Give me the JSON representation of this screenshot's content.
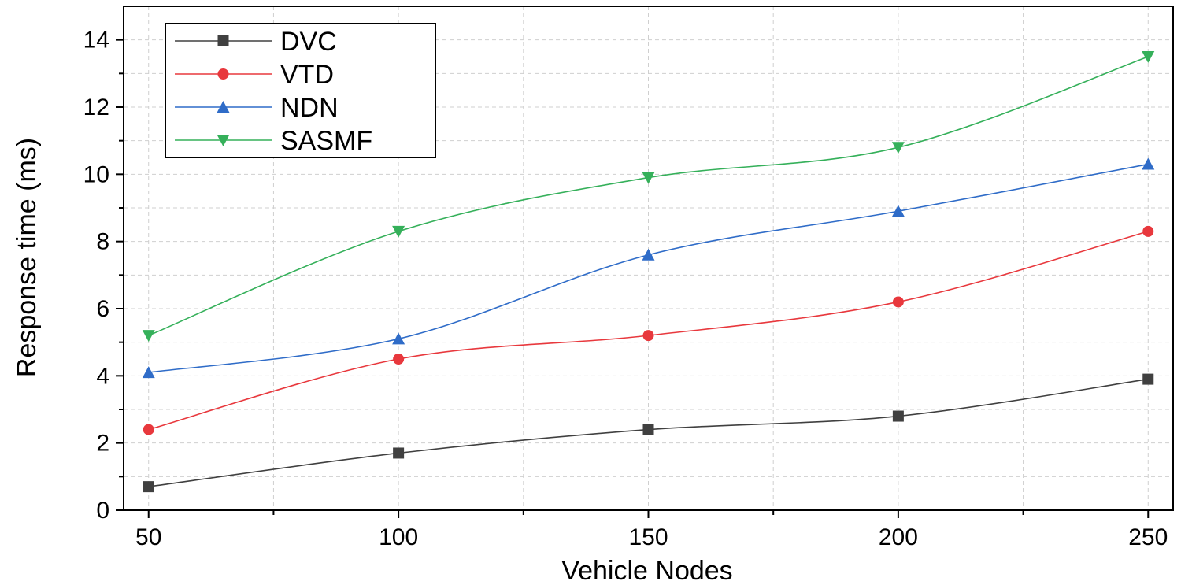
{
  "chart_data": {
    "type": "line",
    "title": "",
    "xlabel": "Vehicle Nodes",
    "ylabel": "Response time (ms)",
    "x": [
      50,
      100,
      150,
      200,
      250
    ],
    "xlim": [
      45,
      255
    ],
    "ylim": [
      0,
      15
    ],
    "xticks": [
      50,
      100,
      150,
      200,
      250
    ],
    "xticks_minor": [
      75,
      125,
      175,
      225
    ],
    "yticks": [
      0,
      2,
      4,
      6,
      8,
      10,
      12,
      14
    ],
    "yticks_minor": [
      1,
      3,
      5,
      7,
      9,
      11,
      13
    ],
    "grid": true,
    "legend_position": "top-left",
    "series": [
      {
        "name": "DVC",
        "color": "#404040",
        "marker": "square",
        "values": [
          0.7,
          1.7,
          2.4,
          2.8,
          3.9
        ]
      },
      {
        "name": "VTD",
        "color": "#e8383d",
        "marker": "circle",
        "values": [
          2.4,
          4.5,
          5.2,
          6.2,
          8.3
        ]
      },
      {
        "name": "NDN",
        "color": "#2f6cc8",
        "marker": "triangle-up",
        "values": [
          4.1,
          5.1,
          7.6,
          8.9,
          10.3
        ]
      },
      {
        "name": "SASMF",
        "color": "#35b05a",
        "marker": "triangle-down",
        "values": [
          5.2,
          8.3,
          9.9,
          10.8,
          13.5
        ]
      }
    ]
  }
}
